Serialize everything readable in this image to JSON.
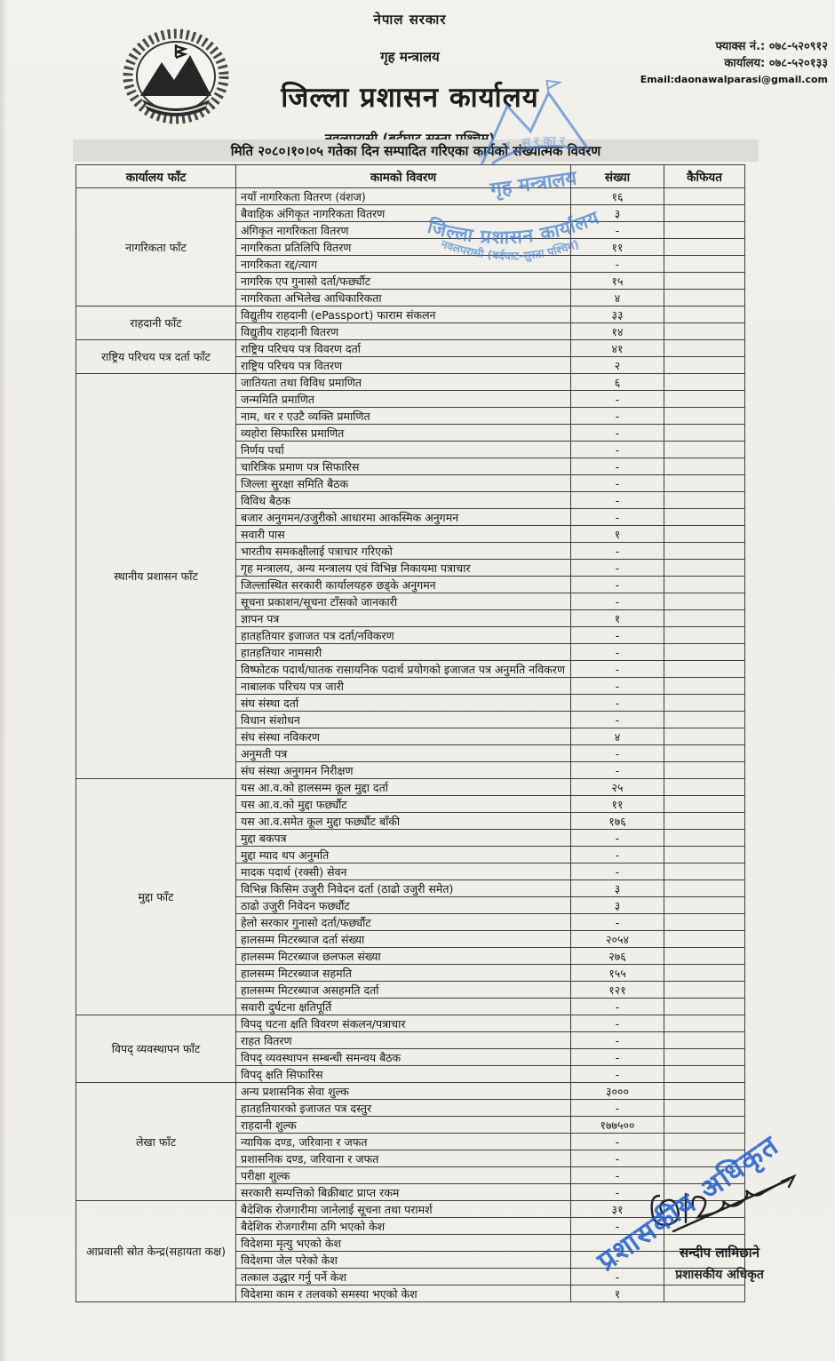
{
  "header": {
    "government": "नेपाल सरकार",
    "ministry": "गृह मन्त्रालय",
    "office": "जिल्ला प्रशासन कार्यालय",
    "district": "नवलपरासी (बर्दघाट सुस्ता पश्चिम)",
    "fax": "फ्याक्स नं.: ०७८-५२०९१२",
    "phone": "कार्यालय: ०७८-५२०१३३",
    "email": "Email:daonawalparasi@gmail.com"
  },
  "title": "मिति २०८०।१०।०५ गतेका दिन सम्पादित गरिएका कार्यको संख्यात्मक विवरण",
  "table": {
    "columns": [
      "कार्यालय फाँट",
      "कामको विवरण",
      "संख्या",
      "कैफियत"
    ],
    "sections": [
      {
        "name": "नागरिकता फाँट",
        "rows": [
          {
            "label": "नयाँ नागरिकता वितरण (वंशज)",
            "count": "१६"
          },
          {
            "label": "बैवाहिक अंगिकृत नागरिकता वितरण",
            "count": "३"
          },
          {
            "label": "अंगिकृत नागरिकता वितरण",
            "count": "-"
          },
          {
            "label": "नागरिकता प्रतिलिपि वितरण",
            "count": "११"
          },
          {
            "label": "नागरिकता रद्द/त्याग",
            "count": "-"
          },
          {
            "label": "नागरिक एप गुनासो दर्ता/फर्छ्यौट",
            "count": "१५"
          },
          {
            "label": "नागरिकता अभिलेख आधिकारिकता",
            "count": "४"
          }
        ]
      },
      {
        "name": "राहदानी फाँट",
        "rows": [
          {
            "label": "विद्युतीय राहदानी (ePassport) फाराम संकलन",
            "count": "३३"
          },
          {
            "label": "विद्युतीय राहदानी वितरण",
            "count": "१४"
          }
        ]
      },
      {
        "name": "राष्ट्रिय परिचय पत्र दर्ता फाँट",
        "rows": [
          {
            "label": "राष्ट्रिय परिचय पत्र विवरण दर्ता",
            "count": "४१"
          },
          {
            "label": "राष्ट्रिय परिचय पत्र वितरण",
            "count": "२"
          }
        ]
      },
      {
        "name": "स्थानीय प्रशासन फाँट",
        "rows": [
          {
            "label": "जातियता तथा विविध प्रमाणित",
            "count": "६"
          },
          {
            "label": "जन्ममिति प्रमाणित",
            "count": "-"
          },
          {
            "label": "नाम, थर र एउटै व्यक्ति प्रमाणित",
            "count": "-"
          },
          {
            "label": "व्यहोरा सिफारिस प्रमाणित",
            "count": "-"
          },
          {
            "label": "निर्णय पर्चा",
            "count": "-"
          },
          {
            "label": "चारित्रिक प्रमाण पत्र सिफारिस",
            "count": "-"
          },
          {
            "label": "जिल्ला सुरक्षा समिति बैठक",
            "count": "-"
          },
          {
            "label": "विविध बैठक",
            "count": "-"
          },
          {
            "label": "बजार अनुगमन/उजुरीको आधारमा आकस्मिक अनुगमन",
            "count": "-"
          },
          {
            "label": "सवारी पास",
            "count": "१"
          },
          {
            "label": "भारतीय समकक्षीलाई पत्राचार गरिएको",
            "count": "-"
          },
          {
            "label": "गृह मन्त्रालय, अन्य मन्त्रालय एवं विभिन्न निकायमा पत्राचार",
            "count": "-"
          },
          {
            "label": "जिल्लास्थित सरकारी कार्यालयहरु छड्के अनुगमन",
            "count": "-"
          },
          {
            "label": "सूचना प्रकाशन/सूचना टाँसको जानकारी",
            "count": "-"
          },
          {
            "label": "ज्ञापन पत्र",
            "count": "१"
          },
          {
            "label": "हातहतियार इजाजत पत्र दर्ता/नविकरण",
            "count": "-"
          },
          {
            "label": "हातहतियार नामसारी",
            "count": "-"
          },
          {
            "label": "विष्फोटक पदार्थ/घातक रासायनिक पदार्थ प्रयोगको इजाजत पत्र अनुमति नविकरण",
            "count": "-"
          },
          {
            "label": "नाबालक परिचय पत्र जारी",
            "count": "-"
          },
          {
            "label": "संघ संस्था दर्ता",
            "count": "-"
          },
          {
            "label": "विधान संशोधन",
            "count": "-"
          },
          {
            "label": "संघ संस्था नविकरण",
            "count": "४"
          },
          {
            "label": "अनुमती पत्र",
            "count": "-"
          },
          {
            "label": "संघ संस्था अनुगमन निरीक्षण",
            "count": "-"
          }
        ]
      },
      {
        "name": "मुद्दा फाँट",
        "rows": [
          {
            "label": "यस आ.व.को हालसम्म कूल मुद्दा दर्ता",
            "count": "२५"
          },
          {
            "label": "यस आ.व.को मुद्दा फर्छ्यौट",
            "count": "११"
          },
          {
            "label": "यस आ.व.समेत कूल मुद्दा फर्छ्यौट बाँकी",
            "count": "१७६"
          },
          {
            "label": "मुद्दा बकपत्र",
            "count": "-"
          },
          {
            "label": "मुद्दा म्याद थप अनुमति",
            "count": "-"
          },
          {
            "label": "मादक पदार्थ (रक्सी) सेवन",
            "count": "-"
          },
          {
            "label": "विभिन्न किसिम उजुरी निवेदन दर्ता (ठाढो उजुरी समेत)",
            "count": "३"
          },
          {
            "label": "ठाढो उजुरी निवेदन फर्छ्यौट",
            "count": "३"
          },
          {
            "label": "हेलो सरकार गुनासो दर्ता/फर्छ्यौट",
            "count": "-"
          },
          {
            "label": "हालसम्म मिटरब्याज दर्ता संख्या",
            "count": "२०५४"
          },
          {
            "label": "हालसम्म मिटरब्याज छलफल संख्या",
            "count": "२७६"
          },
          {
            "label": "हालसम्म मिटरब्याज सहमति",
            "count": "१५५"
          },
          {
            "label": "हालसम्म मिटरब्याज असहमति दर्ता",
            "count": "१२१"
          },
          {
            "label": "सवारी दुर्घटना क्षतिपूर्ति",
            "count": "-"
          }
        ]
      },
      {
        "name": "विपद् व्यवस्थापन फाँट",
        "rows": [
          {
            "label": "विपद् घटना क्षति विवरण संकलन/पत्राचार",
            "count": "-"
          },
          {
            "label": "राहत वितरण",
            "count": "-"
          },
          {
            "label": "विपद् व्यवस्थापन सम्बन्धी समन्वय बैठक",
            "count": "-"
          },
          {
            "label": "विपद् क्षति सिफारिस",
            "count": "-"
          }
        ]
      },
      {
        "name": "लेखा फाँट",
        "rows": [
          {
            "label": "अन्य प्रशासनिक सेवा शुल्क",
            "count": "३०००"
          },
          {
            "label": "हातहतियारको इजाजत पत्र दस्तुर",
            "count": "-"
          },
          {
            "label": "राहदानी शुल्क",
            "count": "१७७५००"
          },
          {
            "label": "न्यायिक दण्ड, जरिवाना र जफत",
            "count": "-"
          },
          {
            "label": "प्रशासनिक दण्ड, जरिवाना र जफत",
            "count": "-"
          },
          {
            "label": "परीक्षा शुल्क",
            "count": "-"
          },
          {
            "label": "सरकारी सम्पत्तिको बिक्रीबाट प्राप्त रकम",
            "count": "-"
          }
        ]
      },
      {
        "name": "आप्रवासी स्रोत केन्द्र(सहायता कक्ष)",
        "rows": [
          {
            "label": "बैदेशिक रोजगारीमा जानेलाई सूचना तथा परामर्श",
            "count": "३१"
          },
          {
            "label": "बैदेशिक रोजगारीमा ठगि भएको केश",
            "count": "-"
          },
          {
            "label": "विदेशमा मृत्यु भएको केश",
            "count": "-"
          },
          {
            "label": "विदेशमा जेल परेको केश",
            "count": "-"
          },
          {
            "label": "तत्काल उद्धार गर्नु पर्ने केश",
            "count": "-"
          },
          {
            "label": "विदेशमा काम र तलवको समस्या भएको केश",
            "count": "१"
          }
        ]
      }
    ]
  },
  "stamp": {
    "arc_top": "नेपाल सरकार",
    "line_mid": "गृह मन्त्रालय",
    "arc_low1": "जिल्ला प्रशासन कार्यालय",
    "arc_low2": "नवलपरासी (बर्दघाट-सुस्ता पश्चिम)",
    "ink_color": "#3f7fd2"
  },
  "signature": {
    "name": "सन्दीप लामिछाने",
    "designation": "प्रशासकीय अधिकृत",
    "diagonal_stamp": "प्रशासकीय अधिकृत"
  }
}
